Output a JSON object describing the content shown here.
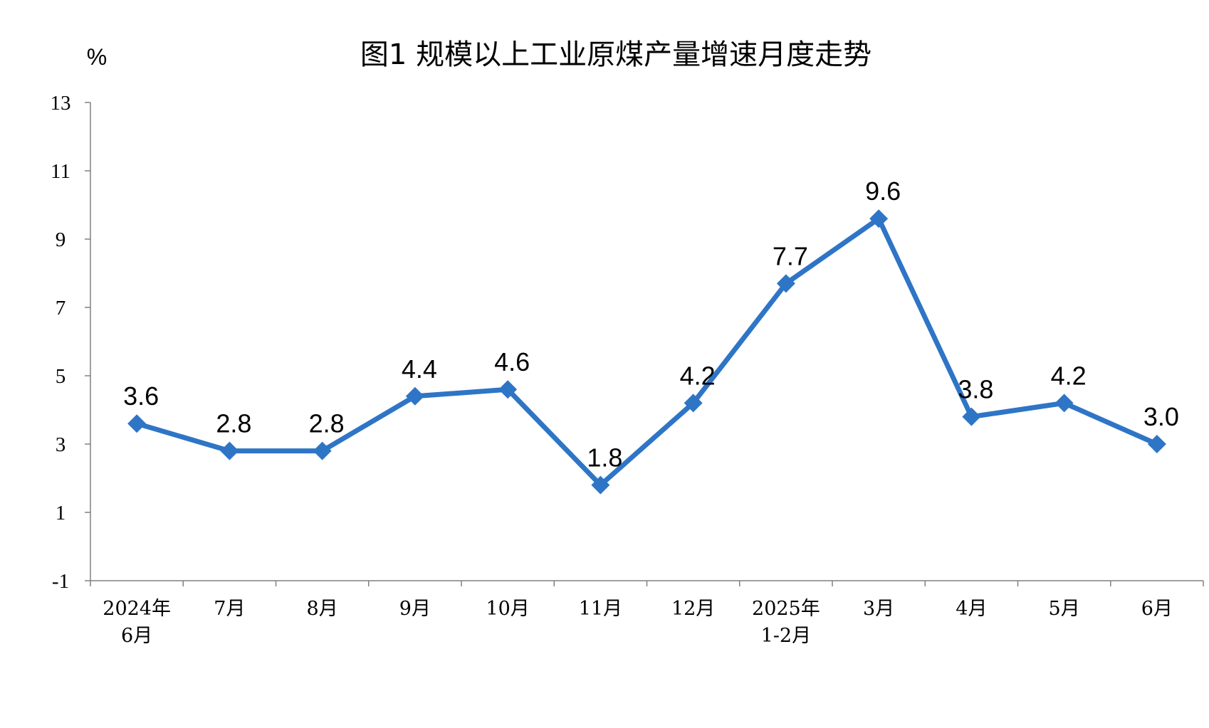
{
  "chart_data": {
    "type": "line",
    "title": "图1  规模以上工业原煤产量增速月度走势",
    "ylabel": "%",
    "xlabel": "",
    "categories": [
      [
        "2024年",
        "6月"
      ],
      [
        "7月"
      ],
      [
        "8月"
      ],
      [
        "9月"
      ],
      [
        "10月"
      ],
      [
        "11月"
      ],
      [
        "12月"
      ],
      [
        "2025年",
        "1-2月"
      ],
      [
        "3月"
      ],
      [
        "4月"
      ],
      [
        "5月"
      ],
      [
        "6月"
      ]
    ],
    "values": [
      3.6,
      2.8,
      2.8,
      4.4,
      4.6,
      1.8,
      4.2,
      7.7,
      9.6,
      3.8,
      4.2,
      3.0
    ],
    "data_labels": [
      "3.6",
      "2.8",
      "2.8",
      "4.4",
      "4.6",
      "1.8",
      "4.2",
      "7.7",
      "9.6",
      "3.8",
      "4.2",
      "3.0"
    ],
    "ylim": [
      -1,
      13
    ],
    "yticks": [
      -1,
      1,
      3,
      5,
      7,
      9,
      11,
      13
    ],
    "grid": false,
    "legend": "none",
    "marker": "diamond",
    "colors": {
      "series": "#2E75C6",
      "axis": "#808080"
    }
  }
}
